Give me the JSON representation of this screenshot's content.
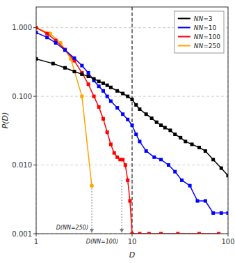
{
  "chart_data": {
    "type": "line",
    "xlabel": "D",
    "ylabel": "P(D)",
    "log": true,
    "grid": true,
    "legend": "upper right",
    "xlim": [
      1,
      100
    ],
    "ylim": [
      0.001,
      2.0
    ],
    "xticks": [
      1,
      10,
      100
    ],
    "yticks": [
      0.001,
      {
        "value": 0.01,
        "label": "0.010"
      },
      {
        "value": 0.1,
        "label": "0.100"
      },
      {
        "value": 1.0,
        "label": "1.000"
      }
    ],
    "series": [
      {
        "name": "NN=3",
        "color": "black",
        "marker": "square",
        "x": [
          1,
          1.5,
          2.0,
          2.5,
          3.0,
          3.5,
          4.0,
          4.5,
          5.0,
          5.5,
          6.0,
          7.0,
          8.0,
          9.0,
          10,
          11,
          12,
          14,
          16,
          18,
          20,
          22,
          25,
          28,
          32,
          36,
          42,
          50,
          58,
          70,
          85,
          100
        ],
        "values": [
          0.35,
          0.3,
          0.26,
          0.23,
          0.21,
          0.195,
          0.18,
          0.165,
          0.155,
          0.145,
          0.135,
          0.12,
          0.11,
          0.1,
          0.09,
          0.075,
          0.065,
          0.055,
          0.048,
          0.042,
          0.038,
          0.035,
          0.032,
          0.028,
          0.025,
          0.022,
          0.02,
          0.018,
          0.016,
          0.012,
          0.009,
          0.007
        ]
      },
      {
        "name": "NN=10",
        "color": "blue",
        "marker": "square",
        "x": [
          1,
          1.3,
          1.6,
          2.0,
          2.5,
          3.0,
          3.5,
          4.0,
          4.5,
          5.0,
          5.5,
          6.0,
          7.0,
          8.0,
          9.0,
          10,
          11,
          12,
          14,
          17,
          20,
          24,
          28,
          33,
          40,
          48,
          58,
          70,
          85,
          100
        ],
        "values": [
          0.85,
          0.72,
          0.6,
          0.47,
          0.36,
          0.28,
          0.22,
          0.17,
          0.14,
          0.12,
          0.1,
          0.085,
          0.068,
          0.055,
          0.046,
          0.038,
          0.028,
          0.022,
          0.016,
          0.013,
          0.012,
          0.01,
          0.008,
          0.006,
          0.005,
          0.003,
          0.003,
          0.002,
          0.002,
          0.002
        ]
      },
      {
        "name": "NN=100",
        "color": "red",
        "marker": "square",
        "x": [
          1,
          1.3,
          1.6,
          2.0,
          2.5,
          3.0,
          3.5,
          4.0,
          4.5,
          5.0,
          5.5,
          6.0,
          6.5,
          7.0,
          7.5,
          8.0,
          8.5,
          9.0,
          9.5,
          10,
          12,
          15,
          20,
          30,
          50,
          80
        ],
        "values": [
          1.0,
          0.82,
          0.65,
          0.48,
          0.33,
          0.22,
          0.15,
          0.1,
          0.07,
          0.047,
          0.03,
          0.02,
          0.015,
          0.013,
          0.012,
          0.012,
          0.01,
          0.006,
          0.003,
          0.001,
          0.001,
          0.001,
          0.001,
          0.001,
          0.001,
          0.001
        ]
      },
      {
        "name": "NN=250",
        "color": "orange",
        "marker": "circle",
        "x": [
          1,
          1.4,
          1.8,
          2.3,
          3.0,
          3.8
        ],
        "values": [
          1.0,
          0.82,
          0.6,
          0.35,
          0.1,
          0.005
        ]
      }
    ],
    "reference_lines": [
      {
        "x": 10,
        "color": "black",
        "line_style": "dashed"
      }
    ],
    "annotations": [
      {
        "text": "D(NN=250)",
        "x": 3.8,
        "y": 0.005,
        "color": "gray",
        "line_style": "dotted"
      },
      {
        "text": "D(NN=100)",
        "x": 7.8,
        "y": 0.006,
        "color": "gray",
        "line_style": "dotted"
      }
    ]
  }
}
